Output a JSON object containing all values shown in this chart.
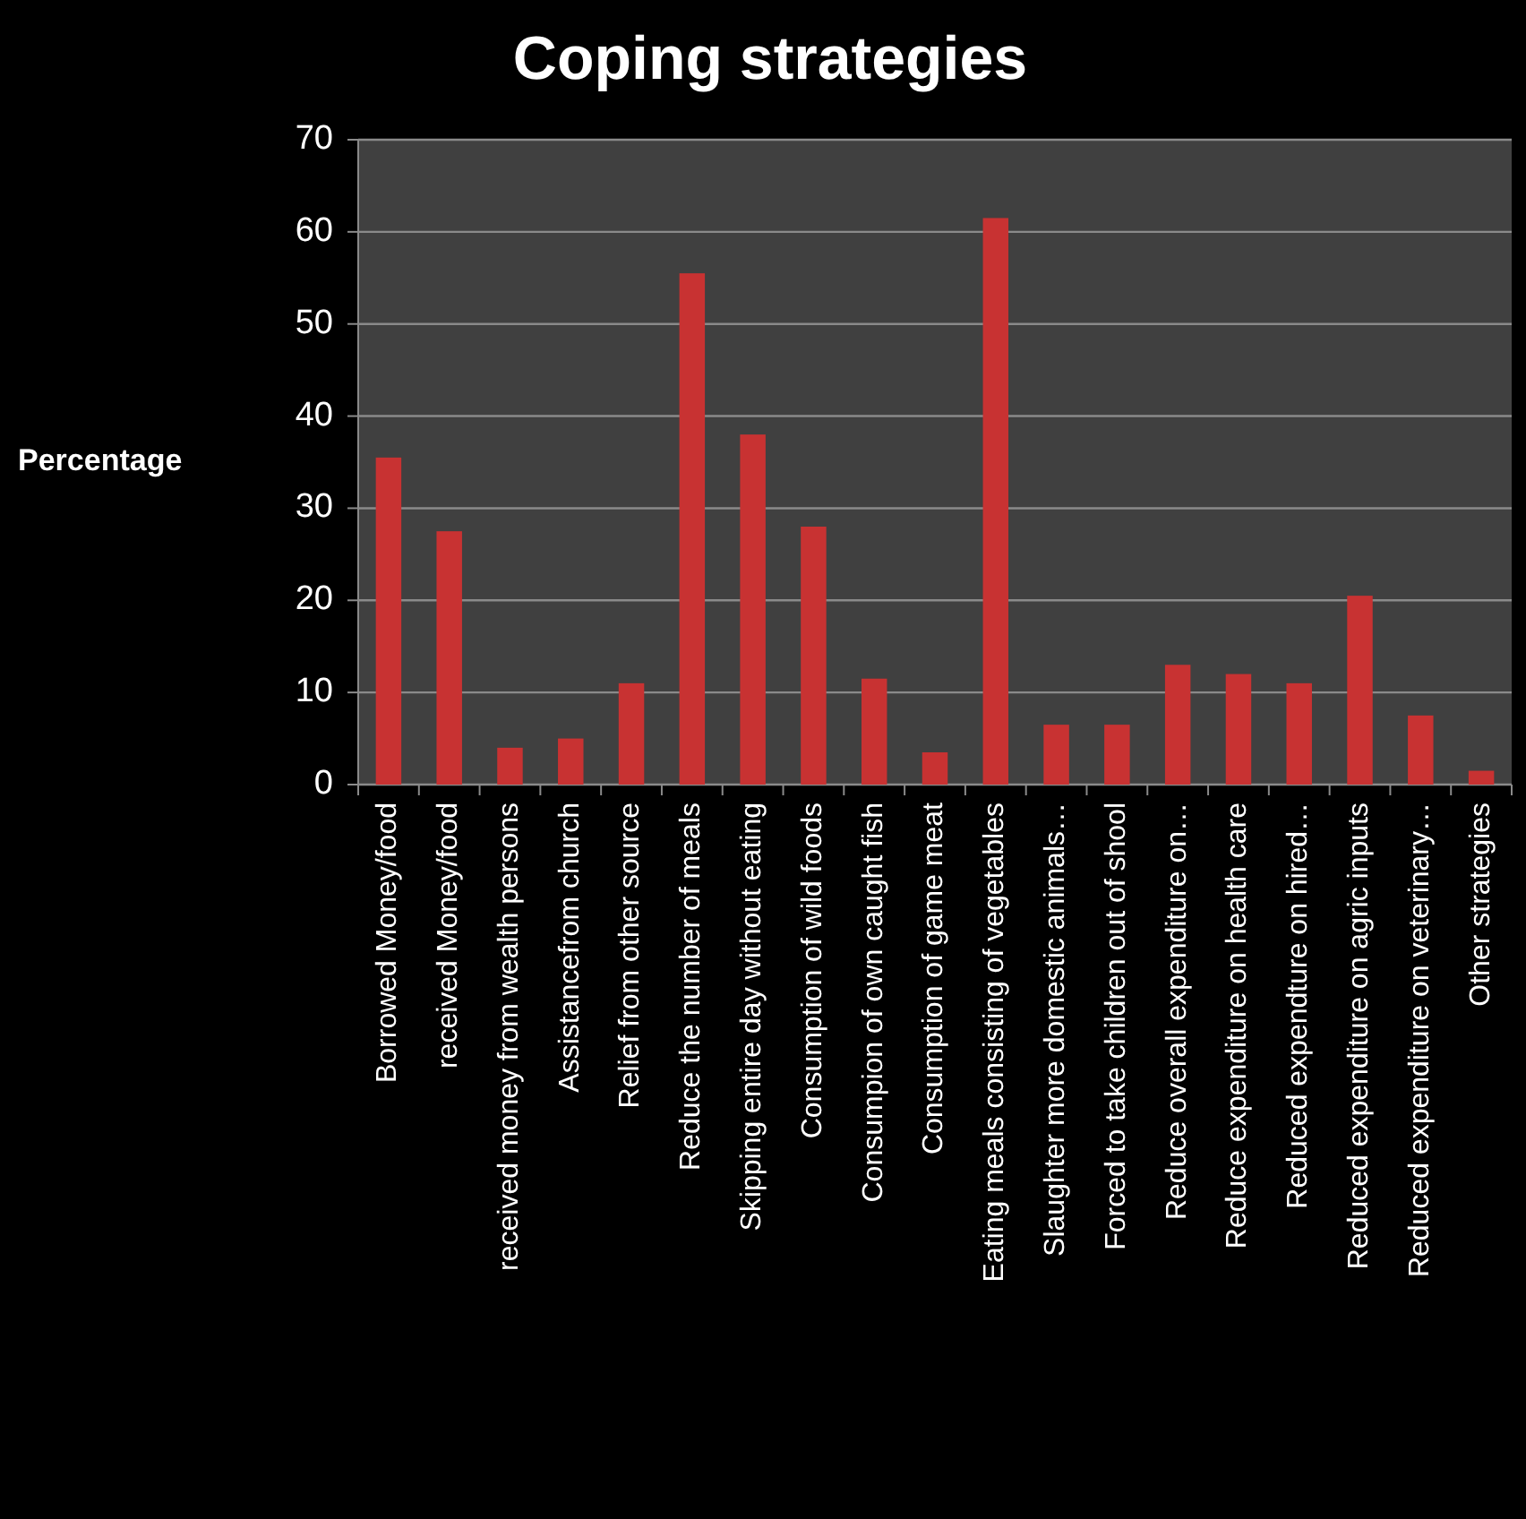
{
  "chart_data": {
    "type": "bar",
    "title": "Coping strategies",
    "ylabel": "Percentage",
    "categories": [
      "Borrowed Money/food",
      "received Money/food",
      "received money from wealth persons",
      "Assistancefrom church",
      "Relief from other source",
      "Reduce the number of meals",
      "Skipping entire day without eating",
      "Consumption of wild foods",
      "Consumpion of own caught fish",
      "Consumption of game meat",
      "Eating meals consisting of vegetables",
      "Slaughter more domestic animals…",
      "Forced to take children out of shool",
      "Reduce overall expenditure on…",
      "Reduce expenditure on health care",
      "Reduced expendture on hired…",
      "Reduced expenditure on agric inputs",
      "Reduced expenditure on veterinary…",
      "Other strategies"
    ],
    "values": [
      35.5,
      27.5,
      4,
      5,
      11,
      55.5,
      38,
      28,
      11.5,
      3.5,
      61.5,
      6.5,
      6.5,
      13,
      12,
      11,
      20.5,
      7.5,
      1.5
    ],
    "color": "#c83232",
    "ylim": [
      0,
      70
    ],
    "yticks": [
      0,
      10,
      20,
      30,
      40,
      50,
      60,
      70
    ],
    "grid": "y"
  }
}
